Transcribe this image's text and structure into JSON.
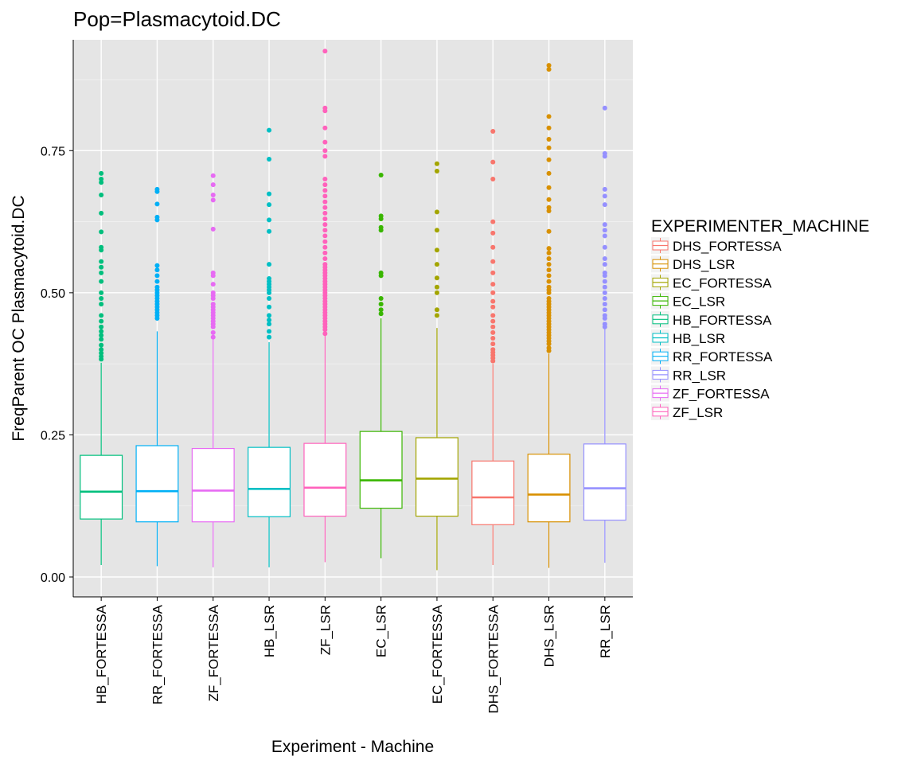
{
  "chart_data": {
    "type": "box",
    "title": "Pop=Plasmacytoid.DC",
    "xlabel": "Experiment - Machine",
    "ylabel": "FreqParent OC  Plasmacytoid.DC",
    "ylim": [
      -0.035,
      0.945
    ],
    "yticks": [
      0.0,
      0.25,
      0.5,
      0.75
    ],
    "ytick_labels": [
      "0.00",
      "0.25",
      "0.50",
      "0.75"
    ],
    "grid": true,
    "legend_placement": "right",
    "legend_title": "EXPERIMENTER_MACHINE",
    "legend": [
      {
        "label": "DHS_FORTESSA",
        "color": "#F8766D"
      },
      {
        "label": "DHS_LSR",
        "color": "#D89000"
      },
      {
        "label": "EC_FORTESSA",
        "color": "#A3A500"
      },
      {
        "label": "EC_LSR",
        "color": "#39B600"
      },
      {
        "label": "HB_FORTESSA",
        "color": "#00BF7D"
      },
      {
        "label": "HB_LSR",
        "color": "#00BFC4"
      },
      {
        "label": "RR_FORTESSA",
        "color": "#00B0F6"
      },
      {
        "label": "RR_LSR",
        "color": "#9590FF"
      },
      {
        "label": "ZF_FORTESSA",
        "color": "#E76BF3"
      },
      {
        "label": "ZF_LSR",
        "color": "#FF62BC"
      }
    ],
    "categories": [
      "HB_FORTESSA",
      "RR_FORTESSA",
      "ZF_FORTESSA",
      "HB_LSR",
      "ZF_LSR",
      "EC_LSR",
      "EC_FORTESSA",
      "DHS_FORTESSA",
      "DHS_LSR",
      "RR_LSR"
    ],
    "boxes": [
      {
        "category": "HB_FORTESSA",
        "color": "#00BF7D",
        "min": 0.021,
        "q1": 0.102,
        "median": 0.15,
        "q3": 0.214,
        "max": 0.377,
        "outliers": [
          0.383,
          0.388,
          0.394,
          0.4,
          0.408,
          0.418,
          0.425,
          0.432,
          0.44,
          0.45,
          0.46,
          0.48,
          0.49,
          0.5,
          0.52,
          0.535,
          0.545,
          0.555,
          0.575,
          0.58,
          0.607,
          0.64,
          0.672,
          0.694,
          0.7,
          0.71
        ]
      },
      {
        "category": "RR_FORTESSA",
        "color": "#00B0F6",
        "min": 0.019,
        "q1": 0.097,
        "median": 0.151,
        "q3": 0.231,
        "max": 0.432,
        "outliers": [
          0.455,
          0.46,
          0.465,
          0.47,
          0.475,
          0.48,
          0.485,
          0.49,
          0.495,
          0.5,
          0.505,
          0.51,
          0.52,
          0.53,
          0.54,
          0.548,
          0.628,
          0.633,
          0.656,
          0.678,
          0.682
        ]
      },
      {
        "category": "ZF_FORTESSA",
        "color": "#E76BF3",
        "min": 0.017,
        "q1": 0.097,
        "median": 0.152,
        "q3": 0.226,
        "max": 0.421,
        "outliers": [
          0.422,
          0.43,
          0.44,
          0.445,
          0.45,
          0.455,
          0.46,
          0.465,
          0.47,
          0.475,
          0.48,
          0.49,
          0.495,
          0.5,
          0.515,
          0.53,
          0.535,
          0.612,
          0.663,
          0.672,
          0.69,
          0.706
        ]
      },
      {
        "category": "HB_LSR",
        "color": "#00BFC4",
        "min": 0.017,
        "q1": 0.106,
        "median": 0.155,
        "q3": 0.228,
        "max": 0.413,
        "outliers": [
          0.422,
          0.432,
          0.445,
          0.452,
          0.46,
          0.475,
          0.49,
          0.5,
          0.505,
          0.51,
          0.515,
          0.52,
          0.525,
          0.55,
          0.608,
          0.628,
          0.655,
          0.674,
          0.735,
          0.786
        ]
      },
      {
        "category": "ZF_LSR",
        "color": "#FF62BC",
        "min": 0.026,
        "q1": 0.107,
        "median": 0.157,
        "q3": 0.235,
        "max": 0.425,
        "outliers": [
          0.428,
          0.435,
          0.44,
          0.445,
          0.45,
          0.455,
          0.46,
          0.465,
          0.47,
          0.475,
          0.48,
          0.485,
          0.49,
          0.495,
          0.5,
          0.505,
          0.51,
          0.515,
          0.52,
          0.525,
          0.53,
          0.535,
          0.54,
          0.545,
          0.55,
          0.56,
          0.57,
          0.58,
          0.59,
          0.6,
          0.61,
          0.62,
          0.63,
          0.64,
          0.65,
          0.66,
          0.67,
          0.68,
          0.69,
          0.7,
          0.74,
          0.75,
          0.765,
          0.79,
          0.82,
          0.825,
          0.925
        ]
      },
      {
        "category": "EC_LSR",
        "color": "#39B600",
        "min": 0.033,
        "q1": 0.121,
        "median": 0.17,
        "q3": 0.256,
        "max": 0.455,
        "outliers": [
          0.463,
          0.47,
          0.48,
          0.49,
          0.53,
          0.535,
          0.61,
          0.615,
          0.63,
          0.635,
          0.707
        ]
      },
      {
        "category": "EC_FORTESSA",
        "color": "#A3A500",
        "min": 0.012,
        "q1": 0.107,
        "median": 0.173,
        "q3": 0.245,
        "max": 0.438,
        "outliers": [
          0.46,
          0.47,
          0.5,
          0.51,
          0.526,
          0.55,
          0.575,
          0.61,
          0.642,
          0.714,
          0.727
        ]
      },
      {
        "category": "DHS_FORTESSA",
        "color": "#F8766D",
        "min": 0.021,
        "q1": 0.092,
        "median": 0.14,
        "q3": 0.204,
        "max": 0.375,
        "outliers": [
          0.38,
          0.385,
          0.39,
          0.395,
          0.4,
          0.41,
          0.42,
          0.43,
          0.44,
          0.45,
          0.46,
          0.475,
          0.485,
          0.5,
          0.515,
          0.535,
          0.555,
          0.58,
          0.605,
          0.625,
          0.7,
          0.73,
          0.784
        ]
      },
      {
        "category": "DHS_LSR",
        "color": "#D89000",
        "min": 0.016,
        "q1": 0.097,
        "median": 0.145,
        "q3": 0.216,
        "max": 0.393,
        "outliers": [
          0.398,
          0.403,
          0.41,
          0.415,
          0.42,
          0.425,
          0.43,
          0.435,
          0.44,
          0.445,
          0.45,
          0.455,
          0.46,
          0.465,
          0.47,
          0.475,
          0.48,
          0.485,
          0.49,
          0.5,
          0.505,
          0.51,
          0.52,
          0.53,
          0.54,
          0.55,
          0.56,
          0.57,
          0.578,
          0.608,
          0.644,
          0.65,
          0.664,
          0.685,
          0.71,
          0.734,
          0.755,
          0.77,
          0.79,
          0.81,
          0.893,
          0.9
        ]
      },
      {
        "category": "RR_LSR",
        "color": "#9590FF",
        "min": 0.025,
        "q1": 0.1,
        "median": 0.156,
        "q3": 0.234,
        "max": 0.438,
        "outliers": [
          0.44,
          0.445,
          0.455,
          0.46,
          0.47,
          0.48,
          0.49,
          0.5,
          0.51,
          0.52,
          0.53,
          0.535,
          0.55,
          0.56,
          0.58,
          0.6,
          0.61,
          0.62,
          0.655,
          0.67,
          0.682,
          0.74,
          0.745,
          0.825
        ]
      }
    ]
  }
}
